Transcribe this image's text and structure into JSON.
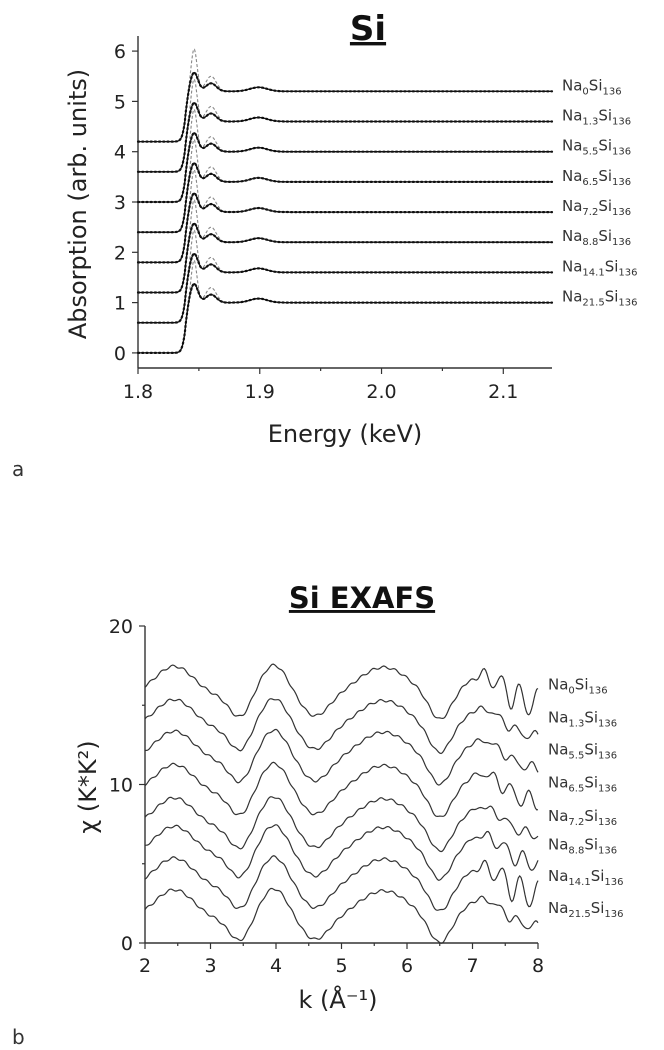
{
  "chart_data": [
    {
      "type": "line",
      "panel_letter": "a",
      "title": "Si",
      "xlabel": "Energy (keV)",
      "ylabel": "Absorption (arb. units)",
      "xlim": [
        1.8,
        2.14
      ],
      "ylim": [
        -0.3,
        6.3
      ],
      "x_ticks": [
        1.8,
        1.9,
        2.0,
        2.1
      ],
      "x_tick_labels": [
        "1.8",
        "1.9",
        "2.0",
        "2.1"
      ],
      "y_ticks": [
        0,
        1,
        2,
        3,
        4,
        5,
        6
      ],
      "y_tick_labels": [
        "0",
        "1",
        "2",
        "3",
        "4",
        "5",
        "6"
      ],
      "edge_energy": 1.839,
      "label_placement": "right",
      "series": [
        {
          "label_main": "Na",
          "label_sub1": "0",
          "label_mid": "Si",
          "label_sub2": "136",
          "pre_edge": 4.2,
          "post_edge": 5.2
        },
        {
          "label_main": "Na",
          "label_sub1": "1.3",
          "label_mid": "Si",
          "label_sub2": "136",
          "pre_edge": 3.6,
          "post_edge": 4.6
        },
        {
          "label_main": "Na",
          "label_sub1": "5.5",
          "label_mid": "Si",
          "label_sub2": "136",
          "pre_edge": 3.0,
          "post_edge": 4.0
        },
        {
          "label_main": "Na",
          "label_sub1": "6.5",
          "label_mid": "Si",
          "label_sub2": "136",
          "pre_edge": 2.4,
          "post_edge": 3.4
        },
        {
          "label_main": "Na",
          "label_sub1": "7.2",
          "label_mid": "Si",
          "label_sub2": "136",
          "pre_edge": 1.8,
          "post_edge": 2.8
        },
        {
          "label_main": "Na",
          "label_sub1": "8.8",
          "label_mid": "Si",
          "label_sub2": "136",
          "pre_edge": 1.2,
          "post_edge": 2.2
        },
        {
          "label_main": "Na",
          "label_sub1": "14.1",
          "label_mid": "Si",
          "label_sub2": "136",
          "pre_edge": 0.6,
          "post_edge": 1.6
        },
        {
          "label_main": "Na",
          "label_sub1": "21.5",
          "label_mid": "Si",
          "label_sub2": "136",
          "pre_edge": 0.0,
          "post_edge": 1.0
        }
      ]
    },
    {
      "type": "line",
      "panel_letter": "b",
      "title": "Si EXAFS",
      "xlabel": "k (Å⁻¹)",
      "ylabel": "χ (K*K²)",
      "xlim": [
        2,
        8
      ],
      "ylim": [
        0,
        20
      ],
      "x_ticks": [
        2,
        3,
        4,
        5,
        6,
        7,
        8
      ],
      "x_tick_labels": [
        "2",
        "3",
        "4",
        "5",
        "6",
        "7",
        "8"
      ],
      "y_ticks": [
        0,
        10,
        20
      ],
      "y_tick_labels": [
        "0",
        "10",
        "20"
      ],
      "label_placement": "right",
      "series": [
        {
          "label_main": "Na",
          "label_sub1": "0",
          "label_mid": "Si",
          "label_sub2": "136",
          "offset": 15.6
        },
        {
          "label_main": "Na",
          "label_sub1": "1.3",
          "label_mid": "Si",
          "label_sub2": "136",
          "offset": 13.5
        },
        {
          "label_main": "Na",
          "label_sub1": "5.5",
          "label_mid": "Si",
          "label_sub2": "136",
          "offset": 11.5
        },
        {
          "label_main": "Na",
          "label_sub1": "6.5",
          "label_mid": "Si",
          "label_sub2": "136",
          "offset": 9.4
        },
        {
          "label_main": "Na",
          "label_sub1": "7.2",
          "label_mid": "Si",
          "label_sub2": "136",
          "offset": 7.3
        },
        {
          "label_main": "Na",
          "label_sub1": "8.8",
          "label_mid": "Si",
          "label_sub2": "136",
          "offset": 5.5
        },
        {
          "label_main": "Na",
          "label_sub1": "14.1",
          "label_mid": "Si",
          "label_sub2": "136",
          "offset": 3.5
        },
        {
          "label_main": "Na",
          "label_sub1": "21.5",
          "label_mid": "Si",
          "label_sub2": "136",
          "offset": 1.5
        }
      ]
    }
  ]
}
